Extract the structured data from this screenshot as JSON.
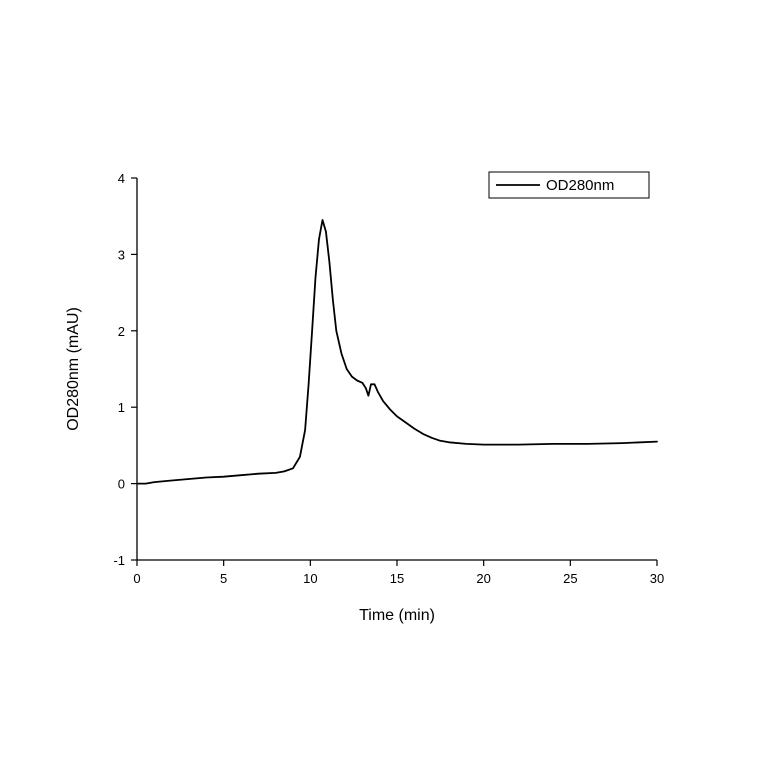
{
  "chart_data": {
    "type": "line",
    "xlabel": "Time (min)",
    "ylabel": "OD280nm (mAU)",
    "xlim": [
      0,
      30
    ],
    "ylim": [
      -1,
      4
    ],
    "x_ticks": [
      "0",
      "5",
      "10",
      "15",
      "20",
      "25",
      "30"
    ],
    "y_ticks": [
      "-1",
      "0",
      "1",
      "2",
      "3",
      "4"
    ],
    "grid": false,
    "legend_position": "top-right",
    "series": [
      {
        "name": "OD280nm",
        "color": "#000000",
        "x": [
          0,
          0.5,
          1,
          2,
          3,
          4,
          5,
          6,
          7,
          8,
          8.5,
          9,
          9.4,
          9.7,
          9.9,
          10.1,
          10.3,
          10.5,
          10.7,
          10.9,
          11.1,
          11.3,
          11.5,
          11.8,
          12.1,
          12.4,
          12.7,
          13.0,
          13.2,
          13.35,
          13.5,
          13.7,
          13.9,
          14.2,
          14.6,
          15.0,
          15.5,
          16.0,
          16.5,
          17.0,
          17.5,
          18.0,
          19.0,
          20.0,
          22.0,
          24.0,
          26.0,
          28.0,
          30.0
        ],
        "values": [
          0.0,
          0.0,
          0.02,
          0.04,
          0.06,
          0.08,
          0.09,
          0.11,
          0.13,
          0.14,
          0.16,
          0.2,
          0.35,
          0.7,
          1.3,
          2.0,
          2.7,
          3.2,
          3.45,
          3.3,
          2.9,
          2.4,
          2.0,
          1.7,
          1.5,
          1.4,
          1.35,
          1.32,
          1.25,
          1.15,
          1.3,
          1.3,
          1.2,
          1.08,
          0.97,
          0.88,
          0.8,
          0.72,
          0.65,
          0.6,
          0.56,
          0.54,
          0.52,
          0.51,
          0.51,
          0.52,
          0.52,
          0.53,
          0.55
        ]
      }
    ]
  }
}
